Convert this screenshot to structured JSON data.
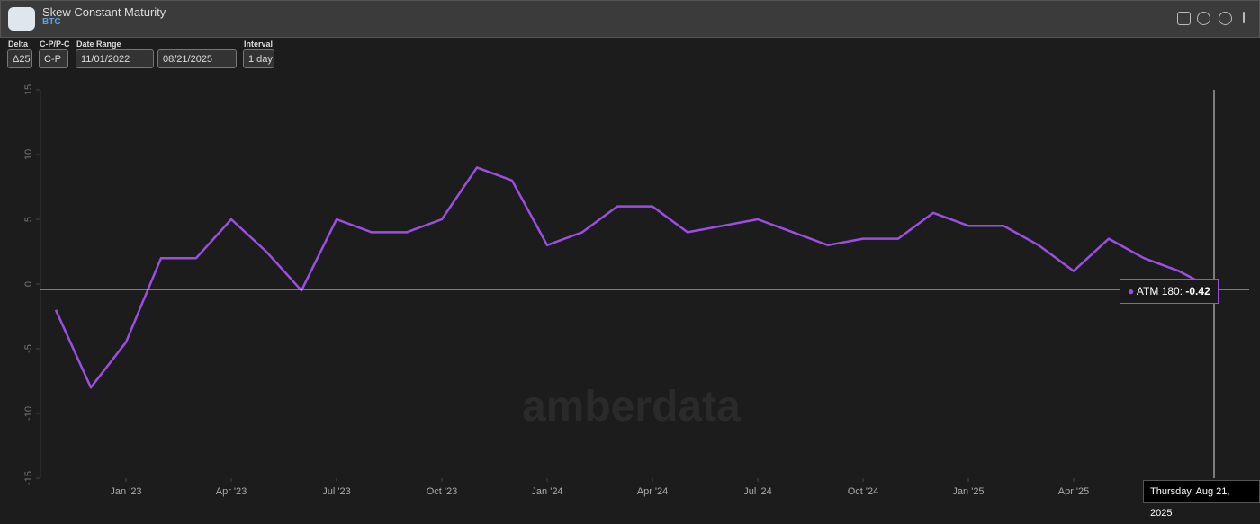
{
  "header": {
    "title": "Skew Constant Maturity",
    "subtitle": "BTC"
  },
  "controls": [
    {
      "label": "Delta",
      "value": "Δ25"
    },
    {
      "label": "C-P/P-C",
      "value": "C-P"
    },
    {
      "label": "Date Range",
      "value": "11/01/2022",
      "value2": "08/21/2025"
    },
    {
      "label": "Interval",
      "value": "1 day"
    }
  ],
  "watermark": "amberdata",
  "tooltip_date": "Thursday, Aug 21, 2025",
  "chart_data": {
    "type": "line",
    "x": [
      "2022-11",
      "2022-12",
      "2023-01",
      "2023-02",
      "2023-03",
      "2023-04",
      "2023-05",
      "2023-06",
      "2023-07",
      "2023-08",
      "2023-09",
      "2023-10",
      "2023-11",
      "2023-12",
      "2024-01",
      "2024-02",
      "2024-03",
      "2024-04",
      "2024-05",
      "2024-06",
      "2024-07",
      "2024-08",
      "2024-09",
      "2024-10",
      "2024-11",
      "2024-12",
      "2025-01",
      "2025-02",
      "2025-03",
      "2025-04",
      "2025-05",
      "2025-06",
      "2025-07",
      "2025-08"
    ],
    "series": [
      {
        "name": "ATM 180",
        "color": "#9b4fe0",
        "values": [
          -2,
          -8,
          -4.5,
          2,
          2,
          5,
          2.5,
          -0.5,
          5,
          4,
          4,
          5,
          9,
          8,
          3,
          4,
          6,
          6,
          4,
          4.5,
          5,
          4,
          3,
          3.5,
          3.5,
          5.5,
          4.5,
          4.5,
          3,
          1,
          3.5,
          2,
          1,
          -0.42
        ]
      }
    ],
    "xlim": [
      "2022-10",
      "2025-09"
    ],
    "xticks": [
      {
        "value": "2023-01",
        "label": "Jan '23"
      },
      {
        "value": "2023-04",
        "label": "Apr '23"
      },
      {
        "value": "2023-07",
        "label": "Jul '23"
      },
      {
        "value": "2023-10",
        "label": "Oct '23"
      },
      {
        "value": "2024-01",
        "label": "Jan '24"
      },
      {
        "value": "2024-04",
        "label": "Apr '24"
      },
      {
        "value": "2024-07",
        "label": "Jul '24"
      },
      {
        "value": "2024-10",
        "label": "Oct '24"
      },
      {
        "value": "2025-01",
        "label": "Jan '25"
      },
      {
        "value": "2025-04",
        "label": "Apr '25"
      }
    ],
    "ylim": [
      -15,
      15
    ],
    "yticks": [
      -15,
      -10,
      -5,
      0,
      5,
      10,
      15
    ]
  }
}
